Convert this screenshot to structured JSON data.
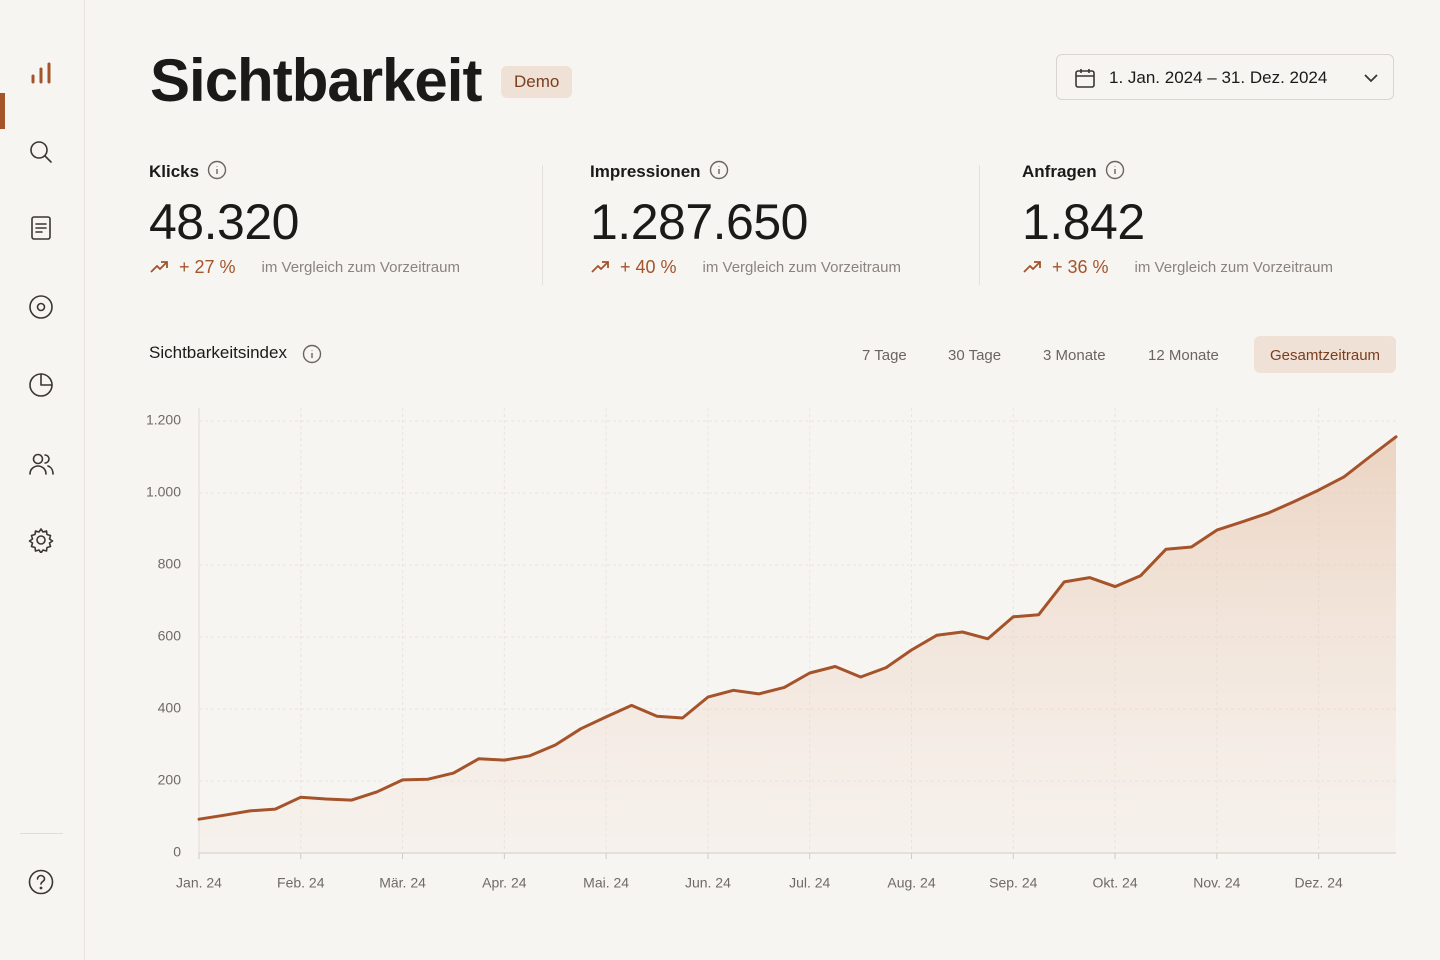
{
  "header": {
    "title": "Sichtbarkeit",
    "badge": "Demo",
    "date_range": "1. Jan. 2024 – 31. Dez. 2024"
  },
  "kpis": [
    {
      "label": "Klicks",
      "value": "48.320",
      "change": "+ 27 %",
      "comparison": "im Vergleich zum Vorzeitraum"
    },
    {
      "label": "Impressionen",
      "value": "1.287.650",
      "change": "+ 40 %",
      "comparison": "im Vergleich zum Vorzeitraum"
    },
    {
      "label": "Anfragen",
      "value": "1.842",
      "change": "+ 36 %",
      "comparison": "im Vergleich zum Vorzeitraum"
    }
  ],
  "tabs": {
    "items": [
      "7 Tage",
      "30 Tage",
      "3 Monate",
      "12 Monate",
      "Gesamtzeitraum"
    ],
    "active": 4
  },
  "chart_data": {
    "type": "area",
    "title": "Sichtbarkeitsindex",
    "color": "#a4532a",
    "grid": true,
    "xlim": [
      0,
      11.76
    ],
    "xticks": [
      {
        "value": 0,
        "label": "Jan. 24"
      },
      {
        "value": 1,
        "label": "Feb. 24"
      },
      {
        "value": 2,
        "label": "Mär. 24"
      },
      {
        "value": 3,
        "label": "Apr. 24"
      },
      {
        "value": 4,
        "label": "Mai. 24"
      },
      {
        "value": 5,
        "label": "Jun. 24"
      },
      {
        "value": 6,
        "label": "Jul. 24"
      },
      {
        "value": 7,
        "label": "Aug. 24"
      },
      {
        "value": 8,
        "label": "Sep. 24"
      },
      {
        "value": 9,
        "label": "Okt. 24"
      },
      {
        "value": 10,
        "label": "Nov. 24"
      },
      {
        "value": 11,
        "label": "Dez. 24"
      }
    ],
    "ylim": [
      0,
      1200
    ],
    "yticks": [
      0,
      200,
      400,
      600,
      800,
      {
        "value": 1000,
        "label": "1.000"
      },
      {
        "value": 1200,
        "label": "1.200"
      }
    ],
    "x": [
      0,
      0.25,
      0.5,
      0.75,
      1,
      1.25,
      1.5,
      1.75,
      2,
      2.25,
      2.5,
      2.75,
      3,
      3.25,
      3.5,
      3.75,
      4,
      4.25,
      4.5,
      4.75,
      5,
      5.25,
      5.5,
      5.75,
      6,
      6.25,
      6.5,
      6.75,
      7,
      7.25,
      7.5,
      7.75,
      8,
      8.25,
      8.5,
      8.75,
      9,
      9.25,
      9.5,
      9.75,
      10,
      10.25,
      10.5,
      10.75,
      11,
      11.25,
      11.5,
      11.76
    ],
    "values": [
      94,
      105,
      117,
      122,
      155,
      150,
      147,
      170,
      203,
      205,
      222,
      262,
      258,
      270,
      300,
      345,
      378,
      410,
      380,
      375,
      433,
      452,
      442,
      460,
      500,
      518,
      489,
      515,
      564,
      605,
      614,
      595,
      656,
      662,
      753,
      765,
      740,
      770,
      844,
      850,
      897,
      920,
      944,
      975,
      1008,
      1045,
      1100,
      1156
    ]
  }
}
